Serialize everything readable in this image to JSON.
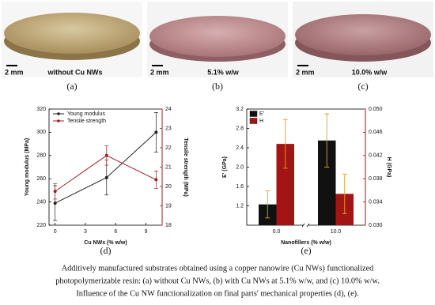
{
  "photos": [
    {
      "scale_bar": "2 mm",
      "label": "without Cu NWs",
      "panel": "(a)"
    },
    {
      "scale_bar": "2 mm",
      "label": "5.1% w/w",
      "panel": "(b)"
    },
    {
      "scale_bar": "2 mm",
      "label": "10.0% w/w",
      "panel": "(c)"
    }
  ],
  "chart_data": [
    {
      "type": "line",
      "panel": "(d)",
      "xlabel": "Cu NWs (% w/w)",
      "ylabel": "Young modulus (MPa)",
      "y2label": "Tensile strength (MPa)",
      "x": [
        0,
        5.1,
        10
      ],
      "xlim": [
        -0.6,
        10.6
      ],
      "xticks": [
        0,
        3,
        6,
        9
      ],
      "ylim": [
        220,
        320
      ],
      "yticks": [
        220,
        240,
        260,
        280,
        300,
        320
      ],
      "y2lim": [
        18,
        24
      ],
      "y2ticks": [
        18,
        19,
        20,
        21,
        22,
        23,
        24
      ],
      "legend": "top-left",
      "series": [
        {
          "name": "Young modulus",
          "color": "#222222",
          "values": [
            239,
            261,
            300
          ],
          "errors": [
            15,
            15,
            17
          ]
        },
        {
          "name": "Tensile strength",
          "color": "#a01c1c",
          "axis": "y2",
          "values": [
            19.75,
            21.6,
            20.35
          ],
          "errors": [
            0.4,
            0.5,
            0.45
          ]
        }
      ]
    },
    {
      "type": "bar",
      "panel": "(e)",
      "xlabel": "Nanofillers (% w/w)",
      "ylabel": "E' (GPa)",
      "y2label": "H (GPa)",
      "categories": [
        "0.0",
        "10.0"
      ],
      "ylim": [
        0.8,
        3.2
      ],
      "yticks": [
        1.2,
        1.6,
        {
          "value": 2,
          "label": "2.0"
        },
        2.4,
        2.8,
        3.2
      ],
      "y2lim": [
        0.03,
        0.05
      ],
      "y2ticks": [
        {
          "value": 0.03,
          "label": "0.030"
        },
        {
          "value": 0.034,
          "label": "0.034"
        },
        {
          "value": 0.038,
          "label": "0.038"
        },
        {
          "value": 0.042,
          "label": "0.042"
        },
        {
          "value": 0.046,
          "label": "0.046"
        },
        {
          "value": 0.05,
          "label": "0.050"
        }
      ],
      "legend": "top-left",
      "broken_x_axis": true,
      "series": [
        {
          "name": "E'",
          "color": "#111111",
          "values": [
            1.23,
            2.55
          ],
          "errors": [
            0.28,
            0.55
          ]
        },
        {
          "name": "H",
          "color": "#a31515",
          "axis": "y2",
          "values": [
            0.044,
            0.0354
          ],
          "errors": [
            0.0042,
            0.0034
          ]
        }
      ]
    }
  ],
  "caption": [
    "Additively manufactured substrates obtained using a copper nanowire (Cu NWs) functionalized",
    "photopolymerizable resin: (a) without Cu NWs, (b) with Cu NWs at 5.1% w/w, and (c) 10.0% w/w.",
    "Influence of the Cu NW functionalization on final parts' mechanical properties (d), (e)."
  ]
}
